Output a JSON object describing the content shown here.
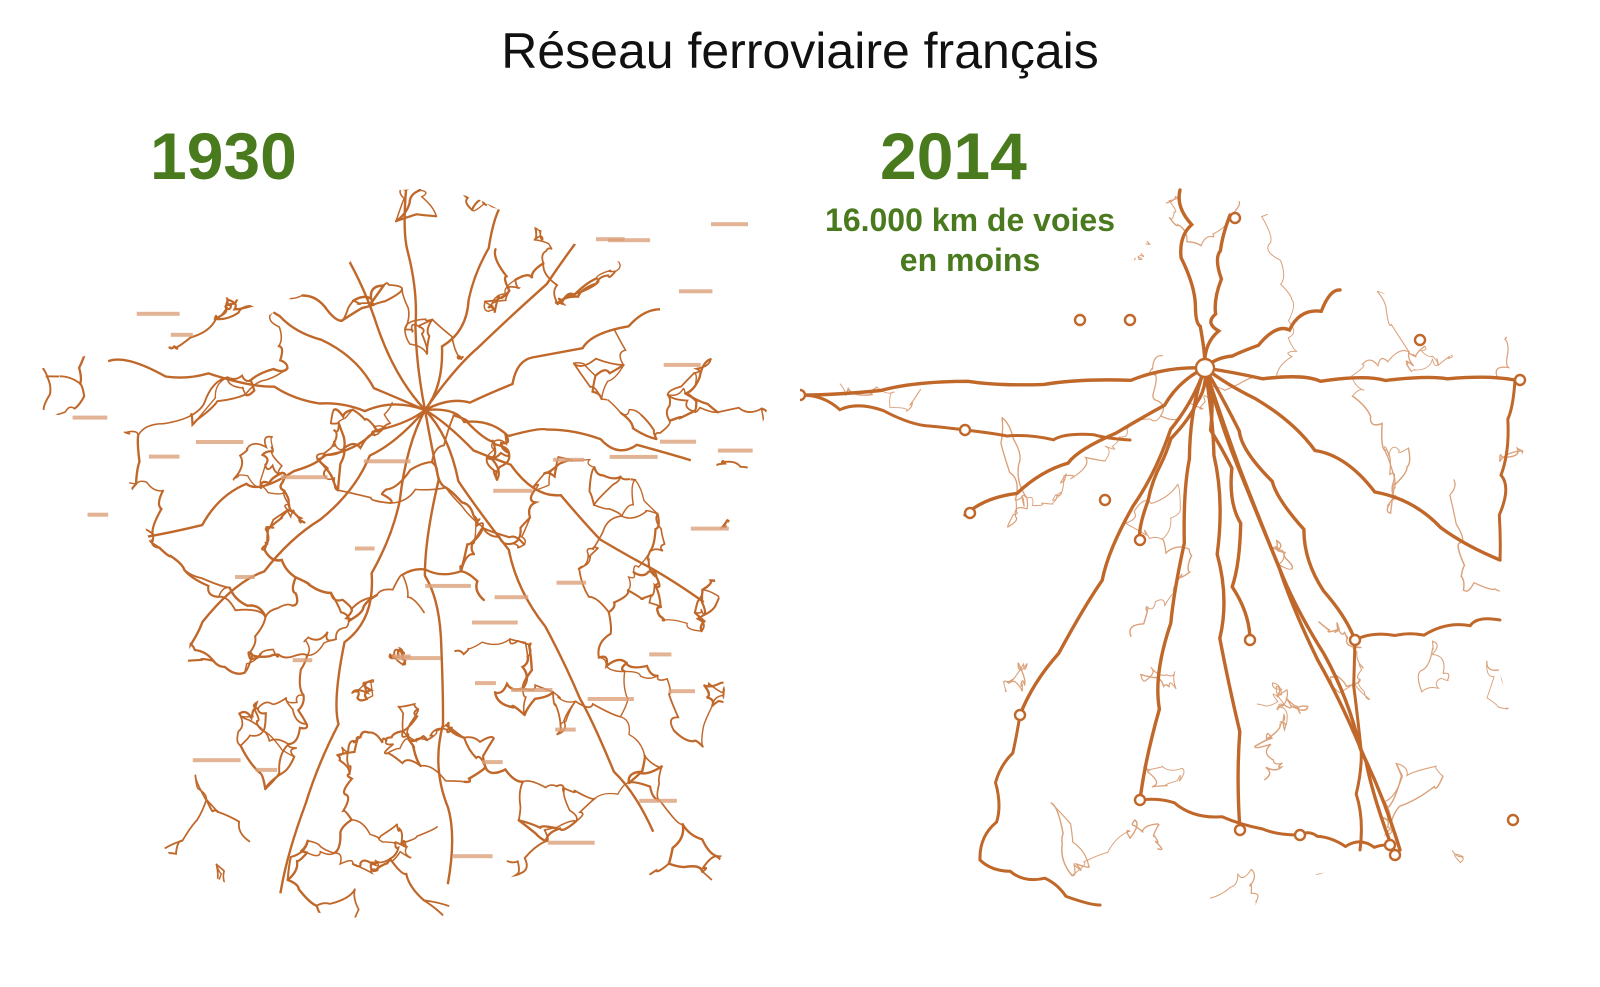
{
  "title": "Réseau ferroviaire français",
  "maps": [
    {
      "year": "1930",
      "rail_density": "very dense"
    },
    {
      "year": "2014",
      "caption_lines": [
        "16.000 km de voies",
        "en moins"
      ],
      "rail_density": "sparse"
    }
  ],
  "colors": {
    "rail": "#c0672a",
    "rail_light": "#dba17a",
    "heading_green": "#4a7a1e",
    "title_text": "#111111",
    "background": "#ffffff"
  }
}
